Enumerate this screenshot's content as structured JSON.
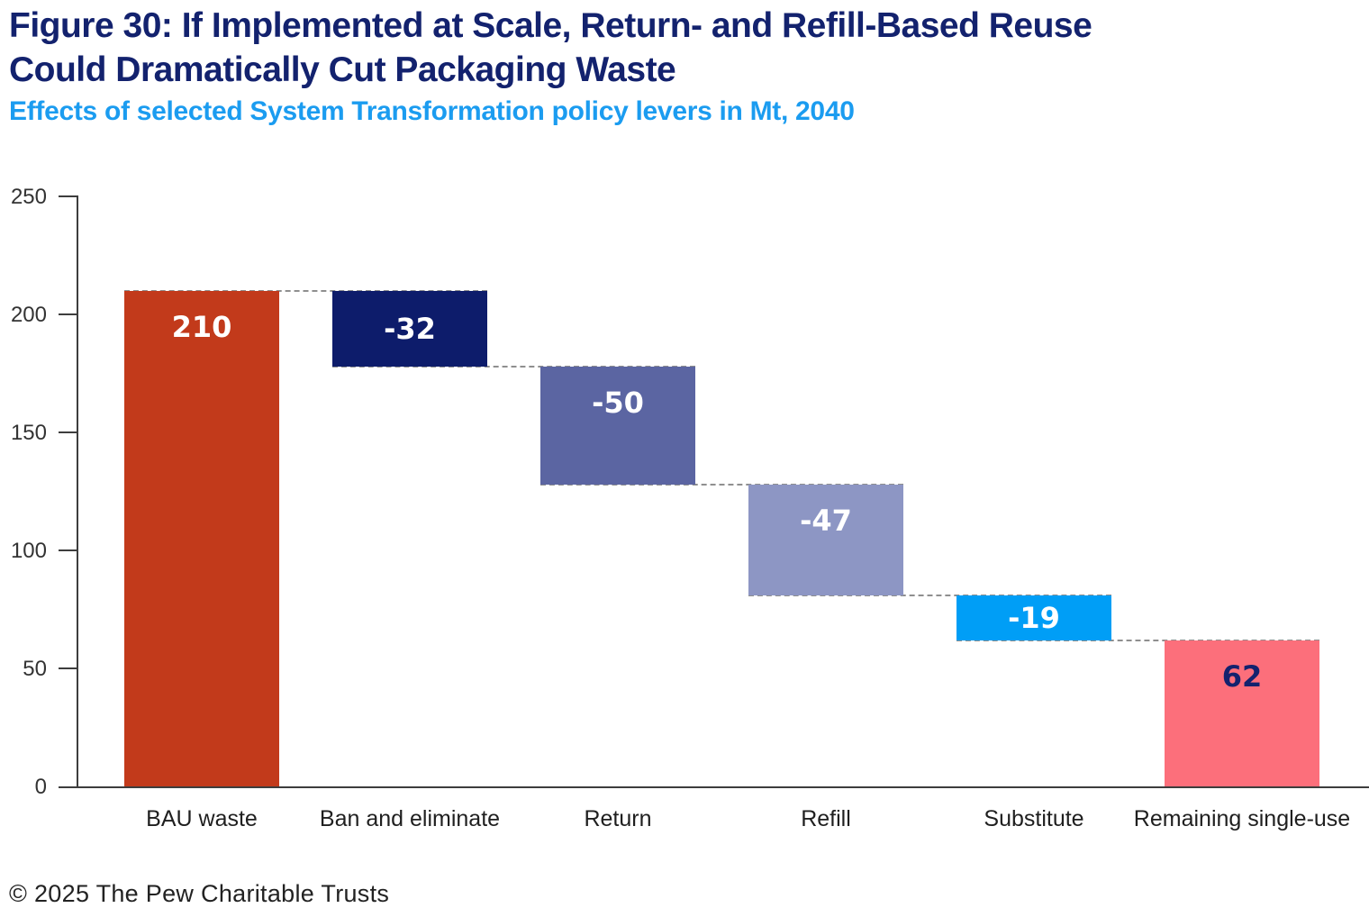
{
  "title": {
    "line1": "Figure 30: If Implemented at Scale, Return- and Refill-Based Reuse",
    "line2": "Could Dramatically Cut Packaging Waste"
  },
  "subtitle": "Effects of selected System Transformation policy levers in Mt, 2040",
  "footer": "© 2025 The Pew Charitable Trusts",
  "colors": {
    "title_navy": "#13226E",
    "subtitle_blue": "#1B9CF0",
    "axis": "#3D3D3D",
    "connector_gray": "#8F8F8F",
    "tick_label": "#333333",
    "category_label": "#1F1F1F"
  },
  "chart_data": {
    "type": "bar",
    "subtype": "waterfall",
    "title": "Figure 30: If Implemented at Scale, Return- and Refill-Based Reuse Could Dramatically Cut Packaging Waste",
    "subtitle": "Effects of selected System Transformation policy levers in Mt, 2040",
    "unit": "Mt",
    "year": "2040",
    "xlabel": "",
    "ylabel": "",
    "ylim": [
      0,
      250
    ],
    "yticks": [
      "0",
      "50",
      "100",
      "150",
      "200",
      "250"
    ],
    "ytick_values": [
      0,
      50,
      100,
      150,
      200,
      250
    ],
    "grid": false,
    "legend": "none",
    "categories": [
      "BAU waste",
      "Ban and eliminate",
      "Return",
      "Refill",
      "Substitute",
      "Remaining single-use"
    ],
    "values": [
      210,
      -32,
      -50,
      -47,
      -19,
      62
    ],
    "bars": [
      {
        "category": "BAU waste",
        "value_label": "210",
        "value": 210,
        "start": 0,
        "end": 210,
        "color": "#C23A1B",
        "label_color": "#FFFFFF"
      },
      {
        "category": "Ban and eliminate",
        "value_label": "-32",
        "value": -32,
        "start": 210,
        "end": 178,
        "color": "#0D1C6B",
        "label_color": "#FFFFFF"
      },
      {
        "category": "Return",
        "value_label": "-50",
        "value": -50,
        "start": 178,
        "end": 128,
        "color": "#5B65A2",
        "label_color": "#FFFFFF"
      },
      {
        "category": "Refill",
        "value_label": "-47",
        "value": -47,
        "start": 128,
        "end": 81,
        "color": "#8D96C4",
        "label_color": "#FFFFFF"
      },
      {
        "category": "Substitute",
        "value_label": "-19",
        "value": -19,
        "start": 81,
        "end": 62,
        "color": "#009EF6",
        "label_color": "#FFFFFF"
      },
      {
        "category": "Remaining single-use",
        "value_label": "62",
        "value": 62,
        "start": 0,
        "end": 62,
        "color": "#FC6F7B",
        "label_color": "#13226E"
      }
    ],
    "connector_levels": [
      210,
      178,
      128,
      81,
      62
    ]
  }
}
